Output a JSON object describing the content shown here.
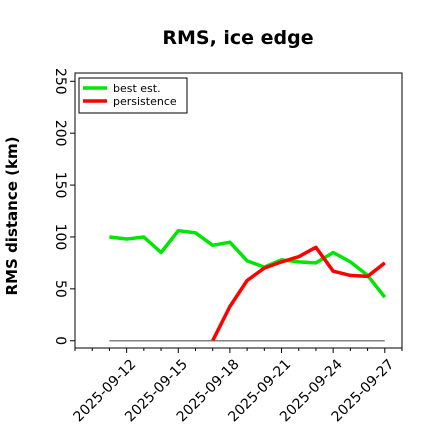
{
  "chart_data": {
    "type": "line",
    "title": "RMS, ice edge",
    "xlabel": "",
    "ylabel": "RMS distance (km)",
    "ylim": [
      -7,
      258
    ],
    "yticks": [
      0,
      50,
      100,
      150,
      200,
      250
    ],
    "xlim": [
      "2025-09-09",
      "2025-09-28"
    ],
    "xticks": [
      "2025-09-12",
      "2025-09-15",
      "2025-09-18",
      "2025-09-21",
      "2025-09-24",
      "2025-09-27"
    ],
    "legend_position": "top-left",
    "grid": false,
    "series": [
      {
        "name": "best est.",
        "color": "#00e600",
        "points": [
          [
            "2025-09-11",
            100
          ],
          [
            "2025-09-12",
            98
          ],
          [
            "2025-09-13",
            100
          ],
          [
            "2025-09-14",
            85
          ],
          [
            "2025-09-15",
            106
          ],
          [
            "2025-09-16",
            104
          ],
          [
            "2025-09-17",
            92
          ],
          [
            "2025-09-18",
            95
          ],
          [
            "2025-09-19",
            77
          ],
          [
            "2025-09-20",
            71
          ],
          [
            "2025-09-21",
            78
          ],
          [
            "2025-09-22",
            76
          ],
          [
            "2025-09-23",
            75
          ],
          [
            "2025-09-24",
            85
          ],
          [
            "2025-09-25",
            76
          ],
          [
            "2025-09-26",
            63
          ],
          [
            "2025-09-27",
            42
          ]
        ]
      },
      {
        "name": "persistence",
        "color": "#ff0000",
        "points": [
          [
            "2025-09-17",
            0
          ],
          [
            "2025-09-18",
            33
          ],
          [
            "2025-09-19",
            58
          ],
          [
            "2025-09-20",
            70
          ],
          [
            "2025-09-21",
            76
          ],
          [
            "2025-09-22",
            81
          ],
          [
            "2025-09-23",
            90
          ],
          [
            "2025-09-24",
            67
          ],
          [
            "2025-09-25",
            63
          ],
          [
            "2025-09-26",
            62
          ],
          [
            "2025-09-27",
            75
          ]
        ]
      }
    ],
    "reference_line": {
      "color": "#808080",
      "y": 0,
      "x_range": [
        "2025-09-11",
        "2025-09-27"
      ]
    }
  }
}
